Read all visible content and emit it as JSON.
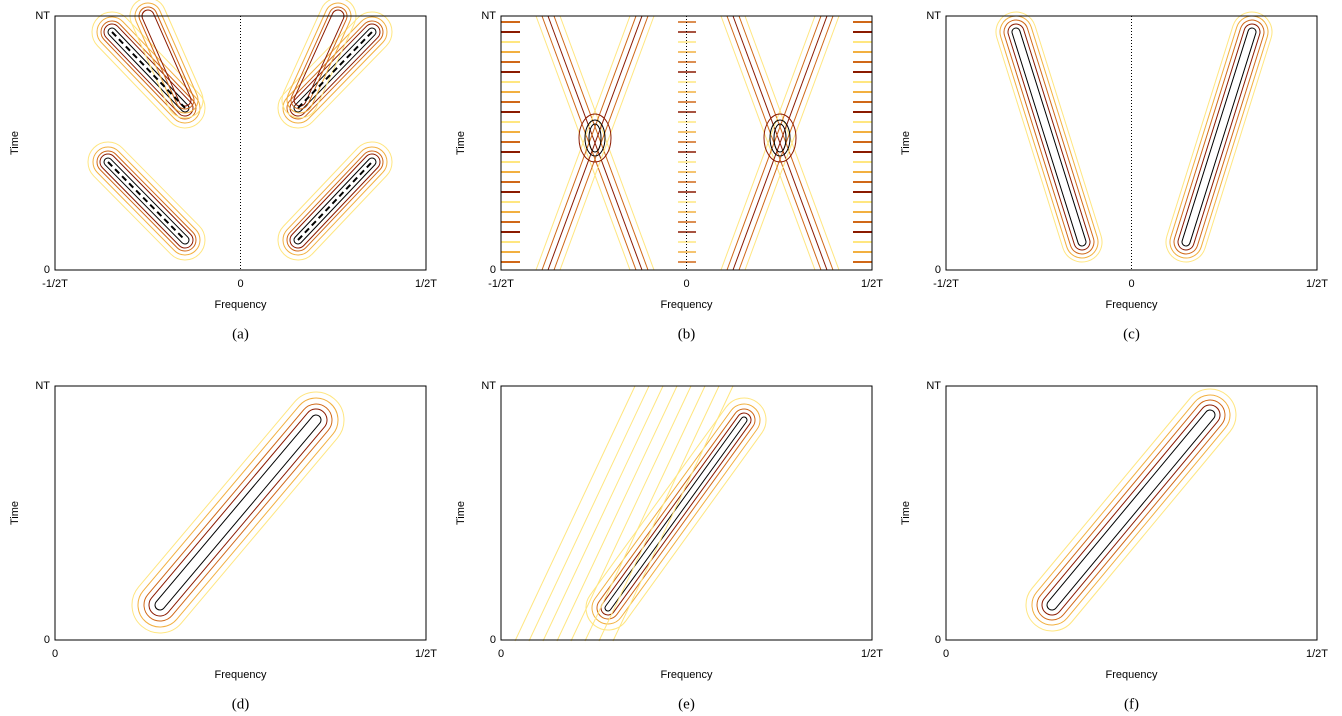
{
  "panels": [
    {
      "caption": "(a)",
      "xlabel": "Frequency",
      "ylabel": "Time",
      "xticks": [
        "-1/2T",
        "0",
        "1/2T"
      ],
      "yticks": [
        "0",
        "NT"
      ]
    },
    {
      "caption": "(b)",
      "xlabel": "Frequency",
      "ylabel": "Time",
      "xticks": [
        "-1/2T",
        "0",
        "1/2T"
      ],
      "yticks": [
        "0",
        "NT"
      ]
    },
    {
      "caption": "(c)",
      "xlabel": "Frequency",
      "ylabel": "Time",
      "xticks": [
        "-1/2T",
        "0",
        "1/2T"
      ],
      "yticks": [
        "0",
        "NT"
      ]
    },
    {
      "caption": "(d)",
      "xlabel": "Frequency",
      "ylabel": "Time",
      "xticks": [
        "0",
        "1/2T"
      ],
      "yticks": [
        "0",
        "NT"
      ]
    },
    {
      "caption": "(e)",
      "xlabel": "Frequency",
      "ylabel": "Time",
      "xticks": [
        "0",
        "1/2T"
      ],
      "yticks": [
        "0",
        "NT"
      ]
    },
    {
      "caption": "(f)",
      "xlabel": "Frequency",
      "ylabel": "Time",
      "xticks": [
        "0",
        "1/2T"
      ],
      "yticks": [
        "0",
        "NT"
      ]
    }
  ]
}
